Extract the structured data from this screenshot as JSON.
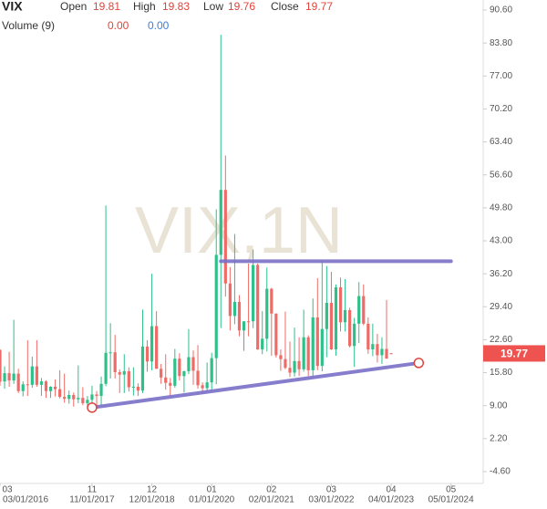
{
  "chart_data": {
    "type": "candlestick",
    "symbol": "VIX",
    "watermark": "VIX,1N",
    "header_labels": {
      "open": "Open",
      "high": "High",
      "low": "Low",
      "close": "Close"
    },
    "volume_label": "Volume (9)",
    "volume_values": [
      0,
      0
    ],
    "volume_value_labels": [
      "0.00",
      "0.00"
    ],
    "volume_colors": [
      "#e0443c",
      "#3d7fd6"
    ],
    "x": [
      "03/01/2016",
      "04/01/2016",
      "05/01/2016",
      "06/01/2016",
      "07/01/2016",
      "08/01/2016",
      "09/01/2016",
      "10/01/2016",
      "11/01/2016",
      "12/01/2016",
      "01/01/2017",
      "02/01/2017",
      "03/01/2017",
      "04/01/2017",
      "05/01/2017",
      "06/01/2017",
      "07/01/2017",
      "08/01/2017",
      "09/01/2017",
      "10/01/2017",
      "11/01/2017",
      "12/01/2017",
      "01/01/2018",
      "02/01/2018",
      "03/01/2018",
      "04/01/2018",
      "05/01/2018",
      "06/01/2018",
      "07/01/2018",
      "08/01/2018",
      "09/01/2018",
      "10/01/2018",
      "11/01/2018",
      "12/01/2018",
      "01/01/2019",
      "02/01/2019",
      "03/01/2019",
      "04/01/2019",
      "05/01/2019",
      "06/01/2019",
      "07/01/2019",
      "08/01/2019",
      "09/01/2019",
      "10/01/2019",
      "11/01/2019",
      "12/01/2019",
      "01/01/2020",
      "02/01/2020",
      "03/01/2020",
      "04/01/2020",
      "05/01/2020",
      "06/01/2020",
      "07/01/2020",
      "08/01/2020",
      "09/01/2020",
      "10/01/2020",
      "11/01/2020",
      "12/01/2020",
      "01/01/2021",
      "02/01/2021",
      "03/01/2021",
      "04/01/2021",
      "05/01/2021",
      "06/01/2021",
      "07/01/2021",
      "08/01/2021",
      "09/01/2021",
      "10/01/2021",
      "11/01/2021",
      "12/01/2021",
      "01/01/2022",
      "02/01/2022",
      "03/01/2022",
      "04/01/2022",
      "05/01/2022",
      "06/01/2022",
      "07/01/2022",
      "08/01/2022",
      "09/01/2022",
      "10/01/2022",
      "11/01/2022",
      "12/01/2022",
      "01/01/2023",
      "02/01/2023",
      "03/01/2023",
      "04/01/2023"
    ],
    "open": [
      20.5,
      14.0,
      15.7,
      14.2,
      15.6,
      12.0,
      13.4,
      13.3,
      17.1,
      13.3,
      14.0,
      12.0,
      12.9,
      12.4,
      10.8,
      10.4,
      11.2,
      10.3,
      10.6,
      9.5,
      10.2,
      11.3,
      11.0,
      13.5,
      19.9,
      20.0,
      15.9,
      15.4,
      16.1,
      12.8,
      12.9,
      12.1,
      21.2,
      18.1,
      25.4,
      16.6,
      14.8,
      13.7,
      13.1,
      18.7,
      15.1,
      16.1,
      19.0,
      16.2,
      13.2,
      12.6,
      13.8,
      18.8,
      40.1,
      53.5,
      34.2,
      27.5,
      30.4,
      24.5,
      26.4,
      26.4,
      38.0,
      20.6,
      22.8,
      33.1,
      28.0,
      19.4,
      18.6,
      16.8,
      15.8,
      18.2,
      16.5,
      23.1,
      16.3,
      27.2,
      17.2,
      24.8,
      30.2,
      20.6,
      33.4,
      26.2,
      28.7,
      21.3,
      25.9,
      31.6,
      25.9,
      20.6,
      21.7,
      19.4,
      20.7,
      19.81
    ],
    "high": [
      20.6,
      17.1,
      20.1,
      26.7,
      16.6,
      14.0,
      22.5,
      19.1,
      22.5,
      14.7,
      14.2,
      13.0,
      14.4,
      16.3,
      15.6,
      12.1,
      11.7,
      17.3,
      12.8,
      11.0,
      13.1,
      12.0,
      15.0,
      50.3,
      26.0,
      23.6,
      16.5,
      19.6,
      16.9,
      16.9,
      13.6,
      28.8,
      22.5,
      36.2,
      28.5,
      17.6,
      19.6,
      14.7,
      20.7,
      19.8,
      16.2,
      24.8,
      20.4,
      21.5,
      13.8,
      17.9,
      19.9,
      49.5,
      85.5,
      60.6,
      37.6,
      44.4,
      31.8,
      26.4,
      38.3,
      41.2,
      38.3,
      28.5,
      37.5,
      33.3,
      28.0,
      20.6,
      28.4,
      22.2,
      25.1,
      23.1,
      28.8,
      23.5,
      31.1,
      35.3,
      38.9,
      37.8,
      36.6,
      34.0,
      35.4,
      35.1,
      29.2,
      27.1,
      34.5,
      34.0,
      27.2,
      25.9,
      23.8,
      23.1,
      30.8,
      19.83
    ],
    "low": [
      13.1,
      12.5,
      12.9,
      13.5,
      11.6,
      10.9,
      11.0,
      12.7,
      12.9,
      11.0,
      10.6,
      10.6,
      10.9,
      10.5,
      9.6,
      9.4,
      8.8,
      9.5,
      9.1,
      8.6,
      8.6,
      8.9,
      9.0,
      13.0,
      14.6,
      14.6,
      11.6,
      11.6,
      11.9,
      11.1,
      11.0,
      11.6,
      16.0,
      16.3,
      16.6,
      13.5,
      12.3,
      11.0,
      12.7,
      14.2,
      11.7,
      15.5,
      13.3,
      12.5,
      11.4,
      11.9,
      12.1,
      13.4,
      25.0,
      31.5,
      24.5,
      25.8,
      23.3,
      20.3,
      23.3,
      25.0,
      20.5,
      19.6,
      20.2,
      19.3,
      18.9,
      16.2,
      16.5,
      14.9,
      15.0,
      15.1,
      16.0,
      15.1,
      15.0,
      16.3,
      16.1,
      19.0,
      20.5,
      19.3,
      24.3,
      24.3,
      21.0,
      17.0,
      21.9,
      25.6,
      19.7,
      19.2,
      17.9,
      17.6,
      18.7,
      19.76
    ],
    "close": [
      13.95,
      15.7,
      14.2,
      15.6,
      12.0,
      13.4,
      13.3,
      17.1,
      13.3,
      14.0,
      12.0,
      12.9,
      12.4,
      10.8,
      10.4,
      11.2,
      10.3,
      10.6,
      9.5,
      10.2,
      11.3,
      11.0,
      13.5,
      19.9,
      20.0,
      15.9,
      15.4,
      16.1,
      12.8,
      12.9,
      12.1,
      21.2,
      18.1,
      25.4,
      16.6,
      14.8,
      13.7,
      13.1,
      18.7,
      15.1,
      16.1,
      19.0,
      16.2,
      13.2,
      12.6,
      13.8,
      18.8,
      40.1,
      53.5,
      34.2,
      27.5,
      30.4,
      24.5,
      26.4,
      26.37,
      38.0,
      20.6,
      22.8,
      33.1,
      28.0,
      19.4,
      18.6,
      16.8,
      15.8,
      18.2,
      16.5,
      23.1,
      16.3,
      27.2,
      17.2,
      24.8,
      30.2,
      20.6,
      33.4,
      26.2,
      28.7,
      21.3,
      25.9,
      31.6,
      25.9,
      20.6,
      21.7,
      19.4,
      20.7,
      18.7,
      19.77
    ],
    "up_color": "#2fc08a",
    "down_color": "#ef6b67",
    "trendlines": [
      {
        "x": [
          "03/01/2020",
          "05/01/2024"
        ],
        "values": [
          38.8,
          38.8
        ],
        "color": "#7a70c8",
        "endpoints": false
      },
      {
        "x": [
          "11/01/2017",
          "10/01/2023"
        ],
        "values": [
          8.6,
          17.8
        ],
        "color": "#7a70c8",
        "endpoints": true
      }
    ],
    "price_tag_color": "#ef5350",
    "xlim": [
      "03/01/2016",
      "12/01/2024"
    ],
    "xticks": [
      {
        "value": "03/01/2016",
        "label": "03"
      },
      {
        "value": "11/01/2017",
        "label": "11"
      },
      {
        "value": "12/01/2018",
        "label": "12"
      },
      {
        "value": "01/01/2020",
        "label": "01"
      },
      {
        "value": "02/01/2021",
        "label": "02"
      },
      {
        "value": "03/01/2022",
        "label": "03"
      },
      {
        "value": "04/01/2023",
        "label": "04"
      },
      {
        "value": "05/01/2024",
        "label": "05"
      }
    ],
    "ylim": [
      -7.05,
      92.67
    ],
    "yticks": [
      {
        "value": 90.6,
        "label": "90.60"
      },
      {
        "value": 83.8,
        "label": "83.80"
      },
      {
        "value": 77,
        "label": "77.00"
      },
      {
        "value": 70.2,
        "label": "70.20"
      },
      {
        "value": 63.4,
        "label": "63.40"
      },
      {
        "value": 56.6,
        "label": "56.60"
      },
      {
        "value": 49.8,
        "label": "49.80"
      },
      {
        "value": 43,
        "label": "43.00"
      },
      {
        "value": 36.2,
        "label": "36.20"
      },
      {
        "value": 29.4,
        "label": "29.40"
      },
      {
        "value": 22.6,
        "label": "22.60"
      },
      {
        "value": 15.8,
        "label": "15.80"
      },
      {
        "value": 9,
        "label": "9.00"
      },
      {
        "value": 2.2,
        "label": "2.20"
      },
      {
        "value": -4.6,
        "label": "-4.60"
      }
    ]
  }
}
